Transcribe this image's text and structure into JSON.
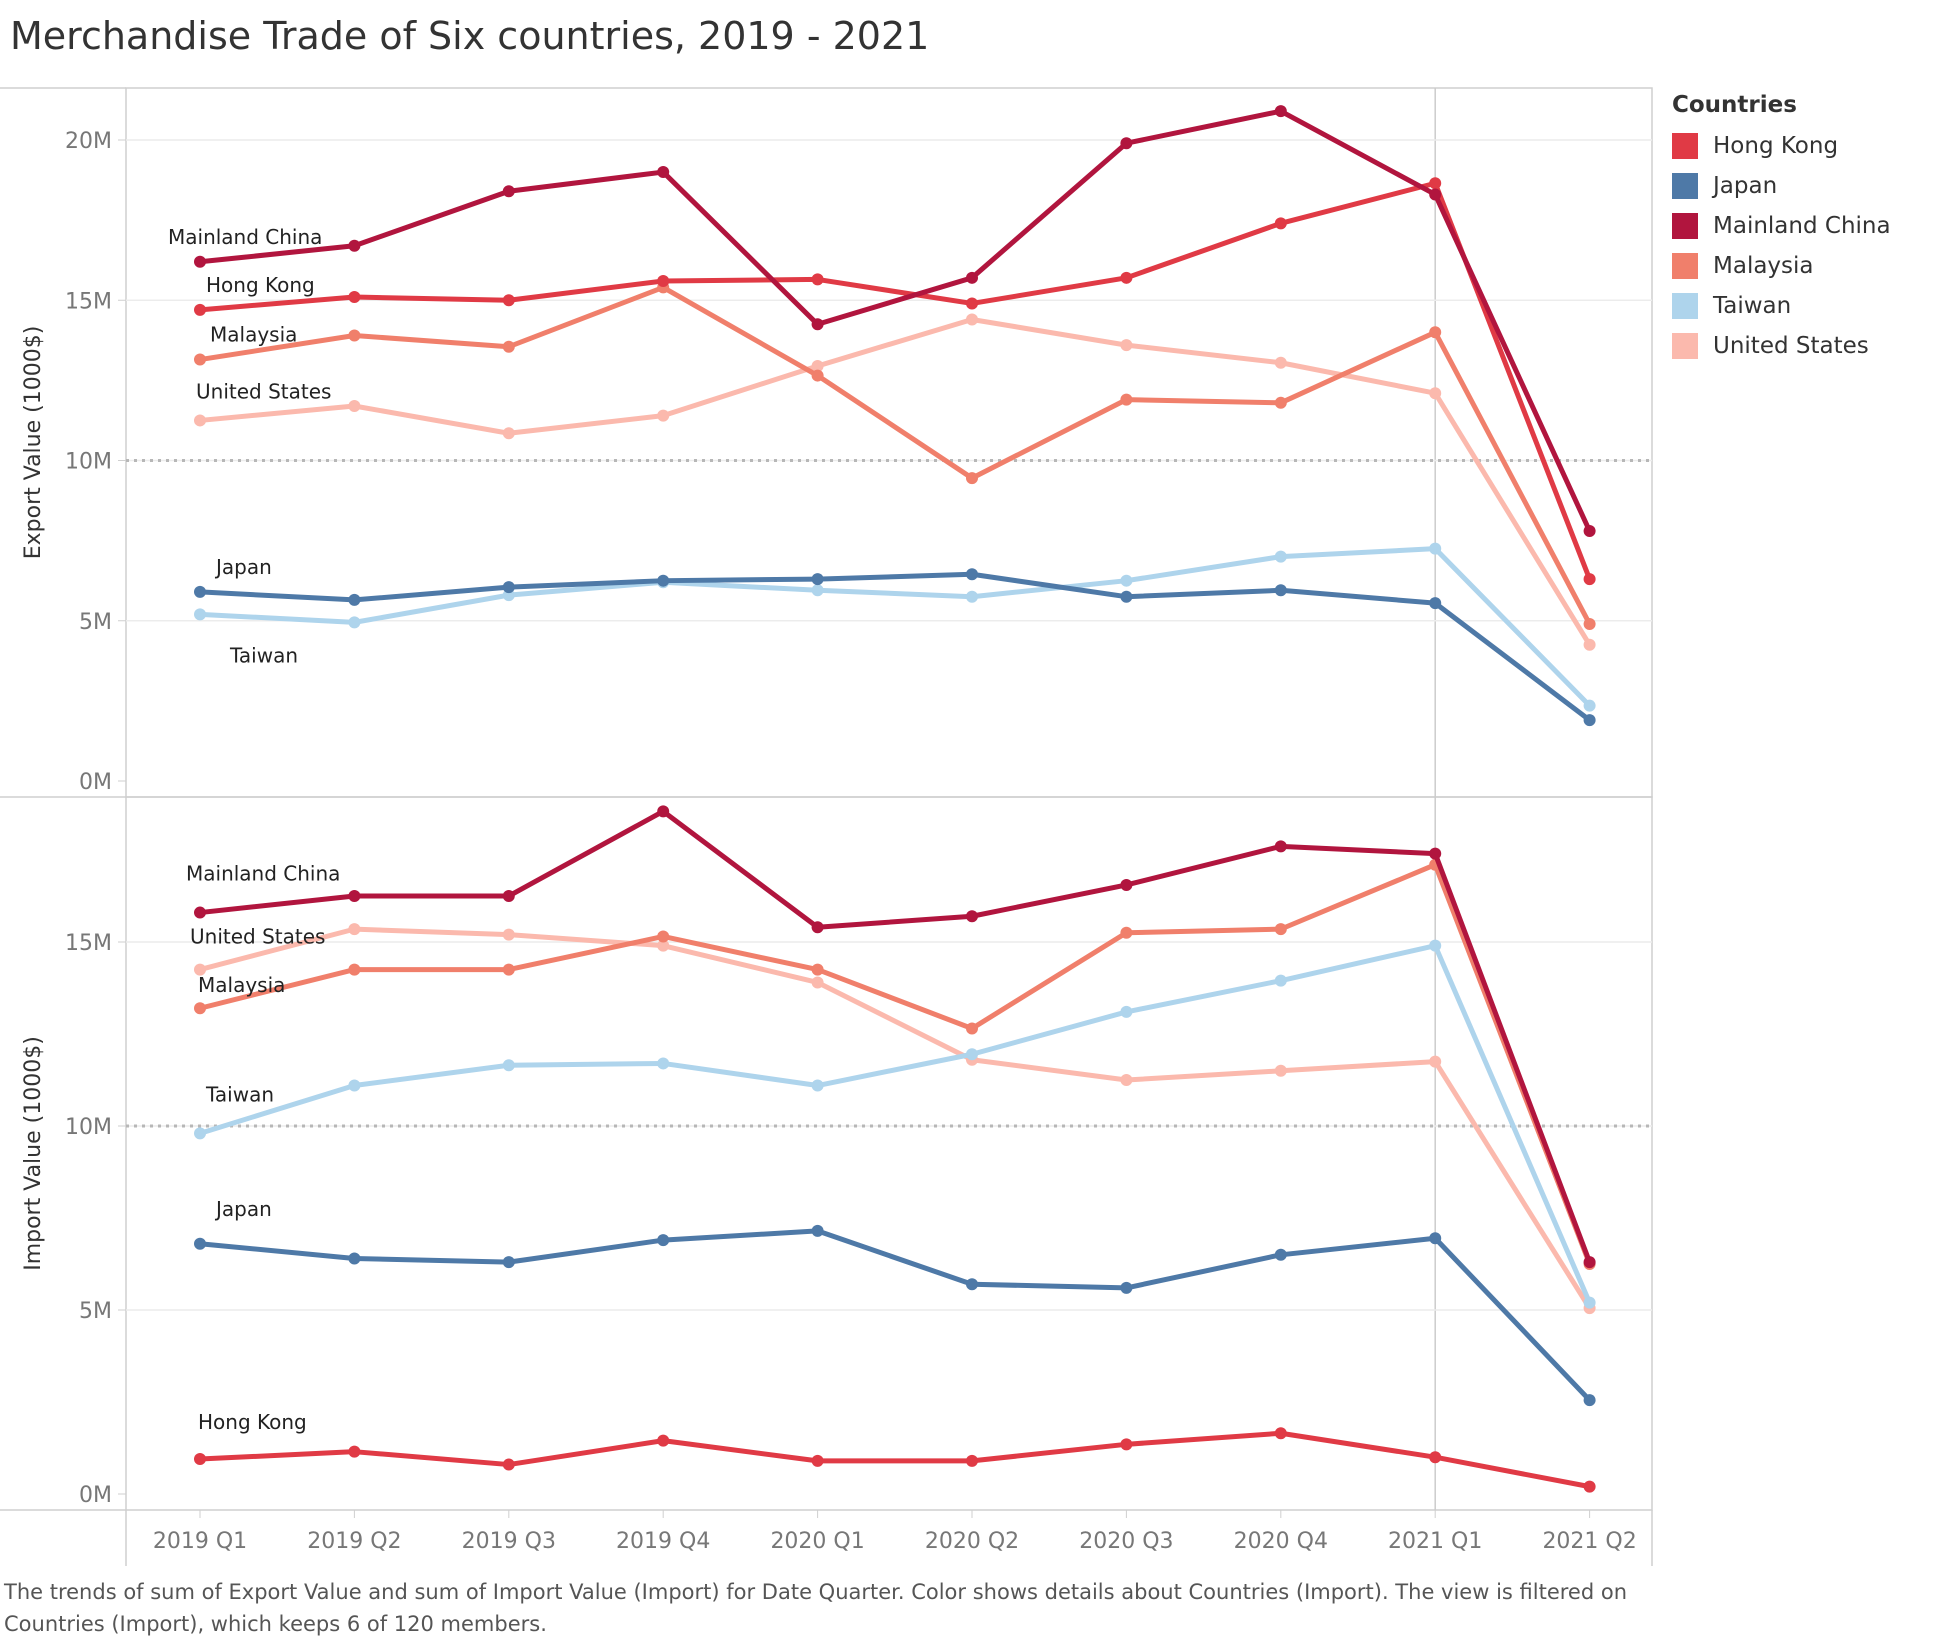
{
  "title": "Merchandise Trade of Six countries, 2019 - 2021",
  "legend": {
    "title": "Countries",
    "items": [
      {
        "name": "Hong Kong",
        "color": "#e03a45"
      },
      {
        "name": "Japan",
        "color": "#4e79a7"
      },
      {
        "name": "Mainland China",
        "color": "#b1153e"
      },
      {
        "name": "Malaysia",
        "color": "#f07f6b"
      },
      {
        "name": "Taiwan",
        "color": "#aed4ec"
      },
      {
        "name": "United States",
        "color": "#fbb9ad"
      }
    ]
  },
  "caption": "The trends of sum of Export Value and sum of Import Value (Import) for Date Quarter.  Color shows details about Countries (Import). The view is filtered on Countries (Import), which keeps 6 of 120 members.",
  "chart_data": [
    {
      "type": "line",
      "ylabel": "Export Value (1000$)",
      "yticks": [
        "0M",
        "5M",
        "10M",
        "15M",
        "20M"
      ],
      "ylim": [
        0,
        22000000
      ],
      "reference_line": 10000000,
      "categories": [
        "2019 Q1",
        "2019 Q2",
        "2019 Q3",
        "2019 Q4",
        "2020 Q1",
        "2020 Q2",
        "2020 Q3",
        "2020 Q4",
        "2021 Q1",
        "2021 Q2"
      ],
      "series": [
        {
          "name": "Hong Kong",
          "values": [
            14700000,
            15100000,
            15000000,
            15600000,
            15650000,
            14900000,
            15700000,
            17400000,
            18650000,
            6300000
          ]
        },
        {
          "name": "Japan",
          "values": [
            5900000,
            5650000,
            6050000,
            6250000,
            6300000,
            6450000,
            5750000,
            5950000,
            5550000,
            1900000
          ]
        },
        {
          "name": "Mainland China",
          "values": [
            16200000,
            16700000,
            18400000,
            19000000,
            14250000,
            15700000,
            19900000,
            20900000,
            18300000,
            7800000
          ]
        },
        {
          "name": "Malaysia",
          "values": [
            13150000,
            13900000,
            13550000,
            15400000,
            12650000,
            9450000,
            11900000,
            11800000,
            14000000,
            4900000
          ]
        },
        {
          "name": "Taiwan",
          "values": [
            5200000,
            4950000,
            5800000,
            6200000,
            5950000,
            5750000,
            6250000,
            7000000,
            7250000,
            2350000
          ]
        },
        {
          "name": "United States",
          "values": [
            11250000,
            11700000,
            10850000,
            11400000,
            12950000,
            14400000,
            13600000,
            13050000,
            12100000,
            4250000
          ]
        }
      ],
      "labels": [
        {
          "text": "Mainland China",
          "series": "Mainland China"
        },
        {
          "text": "Hong Kong",
          "series": "Hong Kong"
        },
        {
          "text": "Malaysia",
          "series": "Malaysia"
        },
        {
          "text": "United States",
          "series": "United States"
        },
        {
          "text": "Japan",
          "series": "Japan"
        },
        {
          "text": "Taiwan",
          "series": "Taiwan"
        }
      ]
    },
    {
      "type": "line",
      "ylabel": "Import Value (1000$)",
      "yticks": [
        "0M",
        "5M",
        "10M",
        "15M"
      ],
      "ylim": [
        0,
        19400000
      ],
      "reference_line": 10000000,
      "categories": [
        "2019 Q1",
        "2019 Q2",
        "2019 Q3",
        "2019 Q4",
        "2020 Q1",
        "2020 Q2",
        "2020 Q3",
        "2020 Q4",
        "2021 Q1",
        "2021 Q2"
      ],
      "series": [
        {
          "name": "Hong Kong",
          "values": [
            950000,
            1150000,
            800000,
            1450000,
            900000,
            900000,
            1350000,
            1650000,
            1000000,
            200000
          ]
        },
        {
          "name": "Japan",
          "values": [
            6800000,
            6400000,
            6300000,
            6900000,
            7150000,
            5700000,
            5600000,
            6500000,
            6950000,
            2550000
          ]
        },
        {
          "name": "Mainland China",
          "values": [
            15800000,
            16250000,
            16250000,
            18550000,
            15400000,
            15700000,
            16550000,
            17600000,
            17400000,
            6300000
          ]
        },
        {
          "name": "Malaysia",
          "values": [
            13200000,
            14250000,
            14250000,
            15150000,
            14250000,
            12650000,
            15250000,
            15350000,
            17100000,
            6250000
          ]
        },
        {
          "name": "Taiwan",
          "values": [
            9800000,
            11100000,
            11650000,
            11700000,
            11100000,
            11950000,
            13100000,
            13950000,
            14900000,
            5200000
          ]
        },
        {
          "name": "United States",
          "values": [
            14250000,
            15350000,
            15200000,
            14900000,
            13900000,
            11800000,
            11250000,
            11500000,
            11750000,
            5050000
          ]
        }
      ],
      "labels": [
        {
          "text": "Mainland China",
          "series": "Mainland China"
        },
        {
          "text": "United States",
          "series": "United States"
        },
        {
          "text": "Malaysia",
          "series": "Malaysia"
        },
        {
          "text": "Taiwan",
          "series": "Taiwan"
        },
        {
          "text": "Japan",
          "series": "Japan"
        },
        {
          "text": "Hong Kong",
          "series": "Hong Kong"
        }
      ]
    }
  ]
}
